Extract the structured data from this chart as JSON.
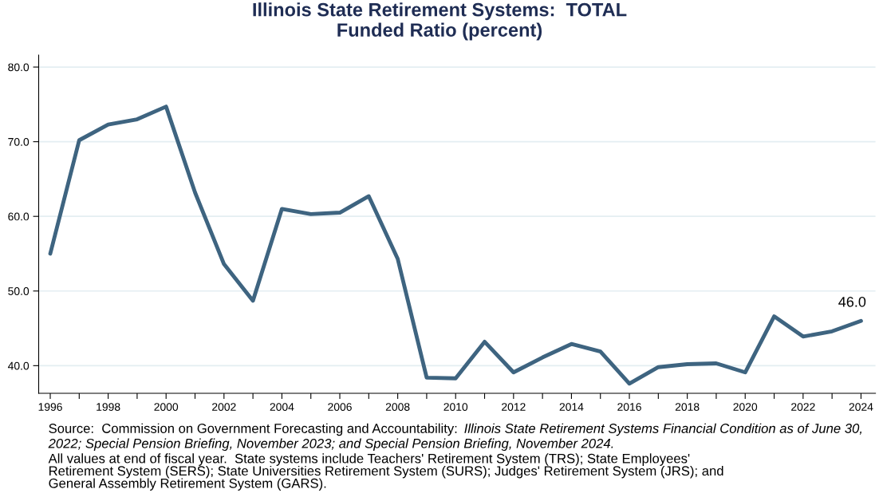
{
  "chart_data": {
    "type": "line",
    "title": "Illinois State Retirement Systems:  TOTAL\nFunded Ratio (percent)",
    "x": [
      1996,
      1997,
      1998,
      1999,
      2000,
      2001,
      2002,
      2003,
      2004,
      2005,
      2006,
      2007,
      2008,
      2009,
      2010,
      2011,
      2012,
      2013,
      2014,
      2015,
      2016,
      2017,
      2018,
      2019,
      2020,
      2021,
      2022,
      2023,
      2024
    ],
    "series": [
      {
        "color": "#3e6480",
        "values": [
          55.0,
          70.2,
          72.3,
          73.0,
          74.7,
          63.2,
          53.6,
          48.7,
          61.0,
          60.3,
          60.5,
          62.7,
          54.3,
          38.4,
          38.3,
          43.2,
          39.1,
          41.1,
          42.9,
          41.9,
          37.6,
          39.8,
          40.2,
          40.3,
          39.1,
          46.6,
          43.9,
          44.6,
          46.0
        ],
        "value_labels": [
          null,
          null,
          null,
          null,
          null,
          null,
          null,
          null,
          null,
          null,
          null,
          null,
          null,
          null,
          null,
          null,
          null,
          null,
          null,
          null,
          null,
          null,
          null,
          null,
          null,
          null,
          null,
          null,
          "46.0"
        ]
      }
    ],
    "xlim": [
      1995.6,
      2024.5
    ],
    "xticks": [
      {
        "value": 1996,
        "label": "1996"
      },
      {
        "value": 1997,
        "label": null
      },
      {
        "value": 1998,
        "label": "1998"
      },
      {
        "value": 1999,
        "label": null
      },
      {
        "value": 2000,
        "label": "2000"
      },
      {
        "value": 2001,
        "label": null
      },
      {
        "value": 2002,
        "label": "2002"
      },
      {
        "value": 2003,
        "label": null
      },
      {
        "value": 2004,
        "label": "2004"
      },
      {
        "value": 2005,
        "label": null
      },
      {
        "value": 2006,
        "label": "2006"
      },
      {
        "value": 2007,
        "label": null
      },
      {
        "value": 2008,
        "label": "2008"
      },
      {
        "value": 2009,
        "label": null
      },
      {
        "value": 2010,
        "label": "2010"
      },
      {
        "value": 2011,
        "label": null
      },
      {
        "value": 2012,
        "label": "2012"
      },
      {
        "value": 2013,
        "label": null
      },
      {
        "value": 2014,
        "label": "2014"
      },
      {
        "value": 2015,
        "label": null
      },
      {
        "value": 2016,
        "label": "2016"
      },
      {
        "value": 2017,
        "label": null
      },
      {
        "value": 2018,
        "label": "2018"
      },
      {
        "value": 2019,
        "label": null
      },
      {
        "value": 2020,
        "label": "2020"
      },
      {
        "value": 2021,
        "label": null
      },
      {
        "value": 2022,
        "label": "2022"
      },
      {
        "value": 2023,
        "label": null
      },
      {
        "value": 2024,
        "label": "2024"
      }
    ],
    "ylim": [
      36.3,
      81.6
    ],
    "yticks": [
      {
        "value": 40,
        "label": "40.0"
      },
      {
        "value": 50,
        "label": "50.0"
      },
      {
        "value": 60,
        "label": "60.0"
      },
      {
        "value": 70,
        "label": "70.0"
      },
      {
        "value": 80,
        "label": "80.0"
      }
    ],
    "grid": "y",
    "marker": "none",
    "line_style": "solid",
    "annotations": [
      "Source:  Commission on Government Forecasting and Accountability:",
      "Illinois State Retirement Systems Financial Condition as of June 30, 2022; Special Pension Briefing, November 2023; and Special Pension Briefing, November 2024.",
      "All values at end of fiscal year.  State systems include Teachers' Retirement System (TRS); State Employees'\nRetirement System (SERS); State Universities Retirement System (SURS); Judges' Retirement System (JRS); and\nGeneral Assembly Retirement System (GARS)."
    ]
  }
}
